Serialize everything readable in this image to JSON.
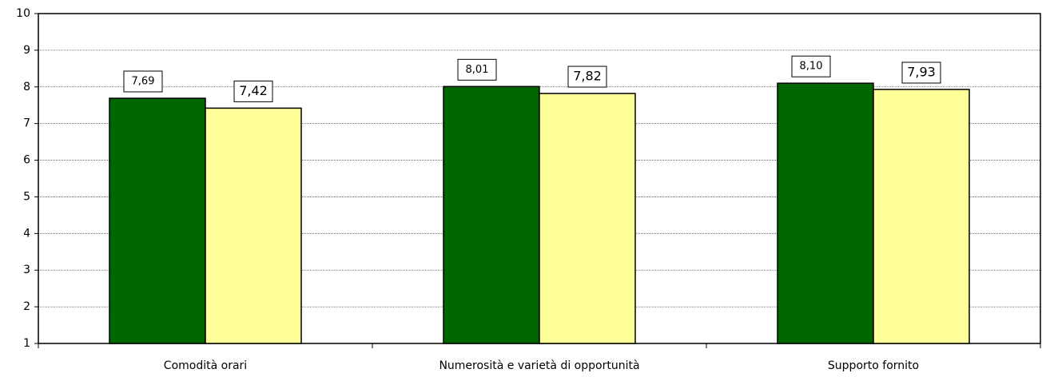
{
  "chart_data": {
    "type": "bar",
    "categories": [
      "Comodità orari",
      "Numerosità e varietà di opportunità",
      "Supporto fornito"
    ],
    "series": [
      {
        "color": "#006600",
        "values": [
          7.69,
          8.01,
          8.1
        ],
        "value_labels": [
          "7,69",
          "8,01",
          "8,10"
        ]
      },
      {
        "color": "#ffff99",
        "values": [
          7.42,
          7.82,
          7.93
        ],
        "value_labels": [
          "7,42",
          "7,82",
          "7,93"
        ]
      }
    ],
    "ylim": [
      1,
      10
    ],
    "yticks": [
      1,
      2,
      3,
      4,
      5,
      6,
      7,
      8,
      9,
      10
    ],
    "grid": true
  }
}
